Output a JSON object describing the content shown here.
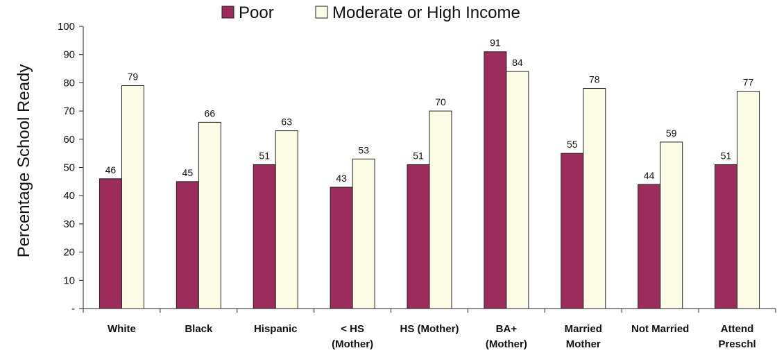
{
  "chart_data": {
    "type": "bar",
    "title": "",
    "xlabel": "",
    "ylabel": "Percentage School Ready",
    "ylim": [
      0,
      100
    ],
    "yticks": [
      "-",
      "10",
      "20",
      "30",
      "40",
      "50",
      "60",
      "70",
      "80",
      "90",
      "100"
    ],
    "categories": [
      [
        "White"
      ],
      [
        "Black"
      ],
      [
        "Hispanic"
      ],
      [
        "< HS",
        "(Mother)"
      ],
      [
        "HS (Mother)"
      ],
      [
        "BA+",
        "(Mother)"
      ],
      [
        "Married",
        "Mother"
      ],
      [
        "Not Married"
      ],
      [
        "Attend",
        "Preschl"
      ]
    ],
    "series": [
      {
        "name": "Poor",
        "color": "#9b2c5c",
        "values": [
          46,
          45,
          51,
          43,
          51,
          91,
          55,
          44,
          51
        ]
      },
      {
        "name": "Moderate or High Income",
        "color": "#fbfbe6",
        "values": [
          79,
          66,
          63,
          53,
          70,
          84,
          78,
          59,
          77
        ]
      }
    ],
    "grid": false,
    "legend_position": "top"
  }
}
